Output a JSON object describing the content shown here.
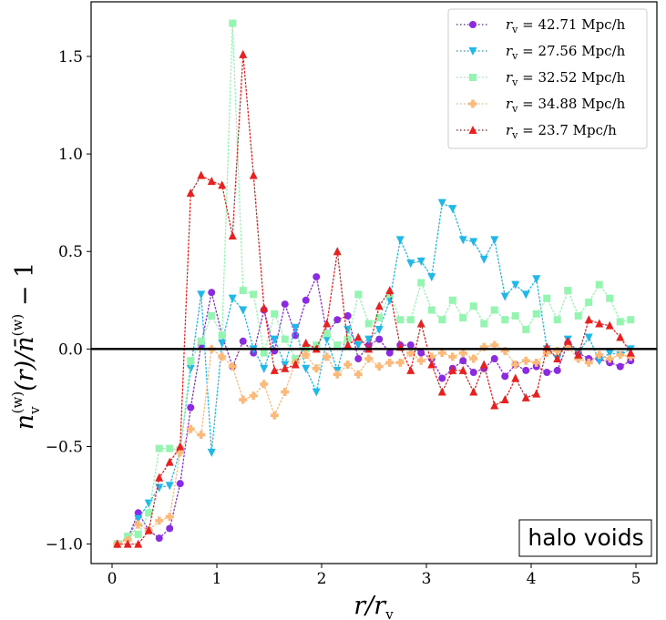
{
  "chart_data": {
    "type": "line",
    "xlabel": "r/r_v",
    "ylabel": "n_v^(w)(r)/n̄^(w) − 1",
    "xlim": [
      -0.2,
      5.2
    ],
    "ylim": [
      -1.1,
      1.78
    ],
    "xticks": [
      0,
      1,
      2,
      3,
      4,
      5
    ],
    "xtick_labels": [
      "0",
      "1",
      "2",
      "3",
      "4",
      "5"
    ],
    "yticks": [
      -1.0,
      -0.5,
      0.0,
      0.5,
      1.0,
      1.5
    ],
    "ytick_labels": [
      "−1.0",
      "−0.5",
      "0.0",
      "0.5",
      "1.0",
      "1.5"
    ],
    "hline": 0,
    "annotation": "halo voids",
    "legend_position": "top-right",
    "x": [
      0.05,
      0.15,
      0.25,
      0.35,
      0.45,
      0.55,
      0.65,
      0.75,
      0.85,
      0.95,
      1.05,
      1.15,
      1.25,
      1.35,
      1.45,
      1.55,
      1.65,
      1.75,
      1.85,
      1.95,
      2.05,
      2.15,
      2.25,
      2.35,
      2.45,
      2.55,
      2.65,
      2.75,
      2.85,
      2.95,
      3.05,
      3.15,
      3.25,
      3.35,
      3.45,
      3.55,
      3.65,
      3.75,
      3.85,
      3.95,
      4.05,
      4.15,
      4.25,
      4.35,
      4.45,
      4.55,
      4.65,
      4.75,
      4.85,
      4.95
    ],
    "series": [
      {
        "name": "r_v = 42.71 Mpc/h",
        "legend_label": "r",
        "legend_value": " = 42.71 Mpc/h",
        "color": "#8a2be2",
        "marker": "circle",
        "values": [
          -1.0,
          -0.97,
          -0.84,
          -0.93,
          -0.97,
          -0.92,
          -0.69,
          -0.3,
          0.02,
          0.29,
          0.07,
          -0.09,
          0.04,
          -0.02,
          0.2,
          -0.01,
          0.23,
          0.07,
          0.25,
          0.37,
          0.08,
          0.15,
          0.17,
          -0.05,
          0.02,
          0.05,
          -0.02,
          0.02,
          0.02,
          -0.02,
          -0.05,
          -0.15,
          -0.1,
          -0.06,
          -0.12,
          -0.1,
          -0.05,
          -0.14,
          -0.08,
          -0.11,
          -0.09,
          -0.12,
          -0.11,
          0.03,
          -0.02,
          -0.05,
          -0.05,
          -0.07,
          -0.09,
          -0.06
        ]
      },
      {
        "name": "r_v = 27.56 Mpc/h",
        "legend_label": "r",
        "legend_value": " = 27.56 Mpc/h",
        "color": "#1fb8e8",
        "marker": "triangle-down",
        "values": [
          -1.0,
          -0.97,
          -0.87,
          -0.79,
          -0.71,
          -0.7,
          -0.52,
          -0.1,
          0.28,
          -0.53,
          0.03,
          0.26,
          0.2,
          0.0,
          -0.1,
          0.05,
          -0.08,
          0.11,
          -0.1,
          -0.22,
          0.05,
          -0.11,
          0.1,
          0.02,
          0.05,
          0.1,
          0.25,
          0.56,
          0.44,
          0.45,
          0.37,
          0.75,
          0.72,
          0.56,
          0.55,
          0.46,
          0.56,
          0.27,
          0.33,
          0.28,
          0.36,
          0.0,
          -0.05,
          0.05,
          -0.02,
          0.06,
          -0.06,
          -0.02,
          -0.03,
          0.0
        ]
      },
      {
        "name": "r_v = 32.52 Mpc/h",
        "legend_label": "r",
        "legend_value": " = 32.52 Mpc/h",
        "color": "#93f5b0",
        "marker": "square",
        "values": [
          -1.0,
          -0.96,
          -0.95,
          -0.84,
          -0.51,
          -0.51,
          -0.52,
          -0.06,
          0.04,
          0.17,
          0.07,
          1.67,
          0.3,
          0.28,
          -0.02,
          0.18,
          0.05,
          -0.05,
          0.0,
          0.02,
          0.08,
          0.02,
          0.05,
          0.28,
          0.13,
          0.16,
          0.28,
          0.15,
          0.15,
          0.34,
          0.2,
          0.15,
          0.25,
          0.16,
          0.22,
          0.13,
          0.2,
          0.15,
          0.17,
          0.1,
          0.18,
          0.26,
          0.15,
          0.3,
          0.17,
          0.24,
          0.33,
          0.26,
          0.14,
          0.15
        ]
      },
      {
        "name": "r_v = 34.88 Mpc/h",
        "legend_label": "r",
        "legend_value": " = 34.88 Mpc/h",
        "color": "#fbb97a",
        "marker": "plus",
        "values": [
          -1.0,
          -0.98,
          -0.9,
          -0.93,
          -0.88,
          -0.86,
          -0.53,
          -0.41,
          -0.44,
          0.0,
          -0.04,
          -0.09,
          -0.26,
          -0.24,
          -0.18,
          -0.34,
          -0.22,
          -0.07,
          -0.03,
          -0.1,
          -0.04,
          -0.13,
          -0.08,
          -0.13,
          -0.05,
          -0.09,
          -0.07,
          -0.07,
          -0.02,
          -0.06,
          -0.04,
          -0.02,
          -0.04,
          -0.02,
          -0.05,
          0.01,
          0.02,
          -0.01,
          -0.08,
          -0.06,
          -0.07,
          -0.02,
          -0.01,
          0.01,
          -0.05,
          -0.07,
          -0.03,
          -0.05,
          -0.03,
          -0.04
        ]
      },
      {
        "name": "r_v = 23.7 Mpc/h",
        "legend_label": "r",
        "legend_value": " = 23.7 Mpc/h",
        "color": "#e82020",
        "marker": "triangle-up",
        "values": [
          -1.0,
          -1.0,
          -1.0,
          -0.93,
          -0.66,
          -0.58,
          -0.5,
          0.8,
          0.89,
          0.86,
          0.84,
          0.58,
          1.51,
          0.89,
          0.21,
          -0.11,
          -0.1,
          -0.08,
          0.03,
          0.0,
          0.13,
          0.5,
          0.02,
          0.06,
          0.0,
          0.22,
          0.3,
          0.01,
          -0.11,
          0.13,
          -0.08,
          -0.22,
          -0.11,
          -0.11,
          -0.22,
          -0.08,
          -0.29,
          -0.26,
          -0.15,
          -0.25,
          -0.23,
          0.01,
          -0.05,
          0.04,
          -0.03,
          0.15,
          0.13,
          0.12,
          0.06,
          -0.02
        ]
      }
    ]
  }
}
